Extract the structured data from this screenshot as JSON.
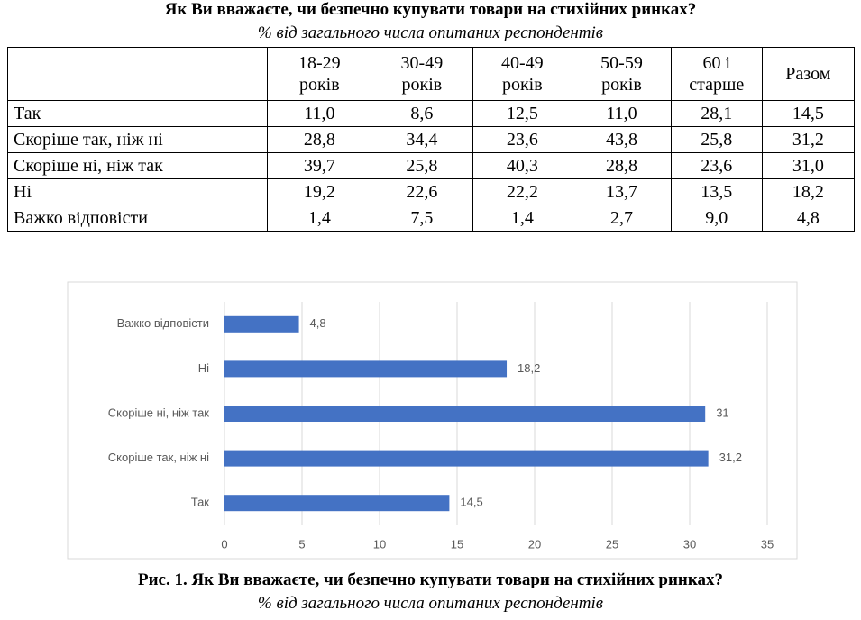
{
  "header": {
    "title": "Як Ви вважаєте, чи безпечно купувати товари на стихійних ринках?",
    "subtitle": "% від загального числа опитаних респондентів"
  },
  "table": {
    "columns": [
      "18-29\nроків",
      "30-49\nроків",
      "40-49\nроків",
      "50-59\nроків",
      "60 і\nстарше",
      "Разом"
    ],
    "rows": [
      [
        "Так",
        "11,0",
        "8,6",
        "12,5",
        "11,0",
        "28,1",
        "14,5"
      ],
      [
        "Скоріше так, ніж ні",
        "28,8",
        "34,4",
        "23,6",
        "43,8",
        "25,8",
        "31,2"
      ],
      [
        "Скоріше ні, ніж так",
        "39,7",
        "25,8",
        "40,3",
        "28,8",
        "23,6",
        "31,0"
      ],
      [
        "Ні",
        "19,2",
        "22,6",
        "22,2",
        "13,7",
        "13,5",
        "18,2"
      ],
      [
        "Важко відповісти",
        "1,4",
        "7,5",
        "1,4",
        "2,7",
        "9,0",
        "4,8"
      ]
    ]
  },
  "chart_data": {
    "type": "bar",
    "orientation": "horizontal",
    "categories": [
      "Так",
      "Скоріше так, ніж ні",
      "Скоріше ні, ніж так",
      "Ні",
      "Важко відповісти"
    ],
    "values": [
      14.5,
      31.2,
      31,
      18.2,
      4.8
    ],
    "value_labels": [
      "14,5",
      "31,2",
      "31",
      "18,2",
      "4,8"
    ],
    "color": "#4472c4",
    "xlim": [
      0,
      35
    ],
    "xticks": [
      0,
      5,
      10,
      15,
      20,
      25,
      30,
      35
    ],
    "grid": true
  },
  "caption": {
    "title": "Рис. 1. Як Ви вважаєте, чи безпечно купувати товари на стихійних ринках?",
    "subtitle": "% від загального числа опитаних респондентів"
  }
}
